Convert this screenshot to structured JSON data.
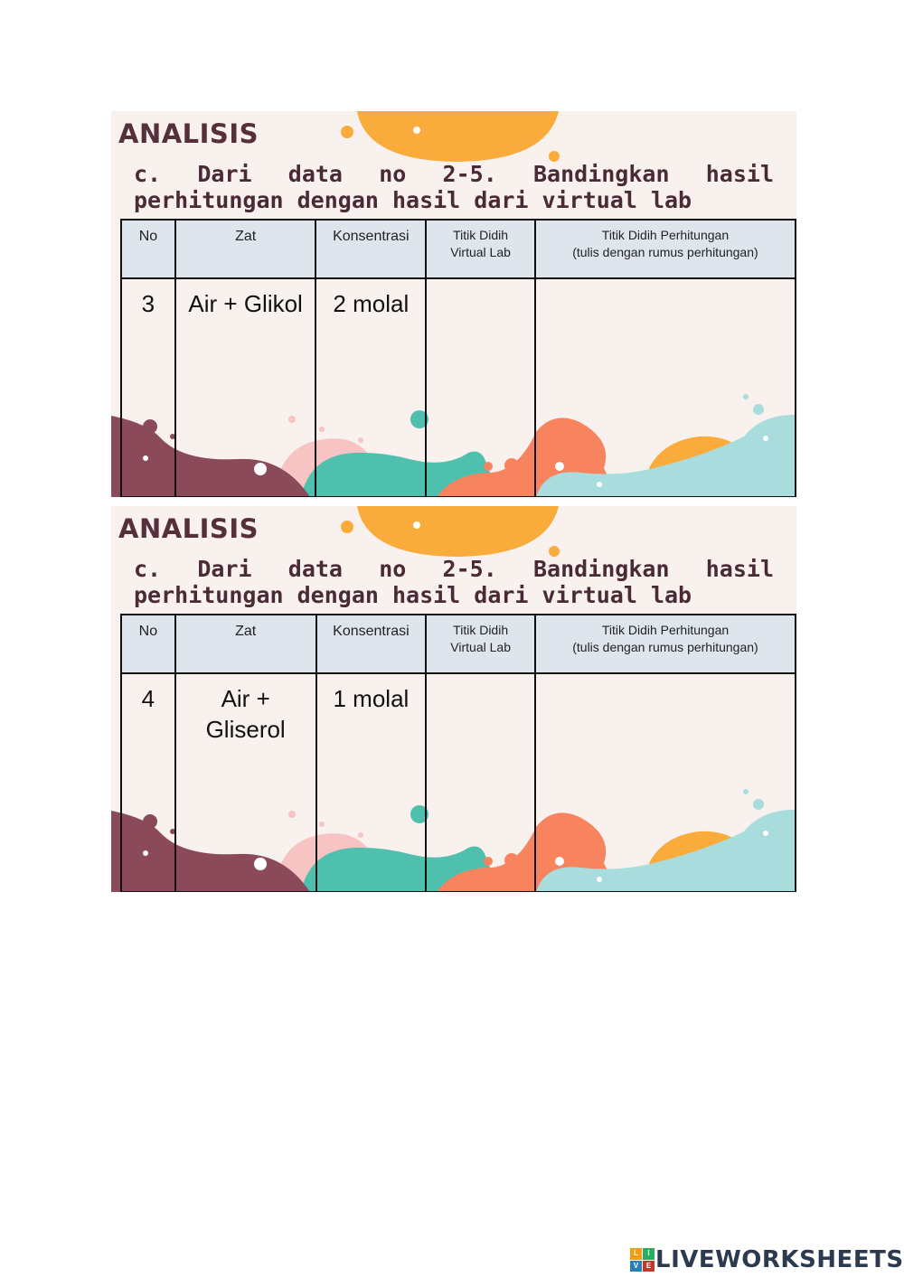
{
  "cards": [
    {
      "heading": "ANALISIS",
      "question": "c. Dari data no 2-5. Bandingkan hasil perhitungan dengan hasil dari virtual lab",
      "headers": [
        "No",
        "Zat",
        "Konsentrasi",
        "Titik Didih\nVirtual Lab",
        "Titik Didih Perhitungan\n(tulis dengan rumus perhitungan)"
      ],
      "row": {
        "no": "3",
        "zat": "Air + Glikol",
        "konsentrasi": "2 molal",
        "virtual_lab": "",
        "perhitungan": ""
      }
    },
    {
      "heading": "ANALISIS",
      "question": "c. Dari data no 2-5. Bandingkan hasil perhitungan dengan hasil dari virtual lab",
      "headers": [
        "No",
        "Zat",
        "Konsentrasi",
        "Titik Didih\nVirtual Lab",
        "Titik Didih Perhitungan\n(tulis dengan rumus perhitungan)"
      ],
      "row": {
        "no": "4",
        "zat": "Air +\nGliserol",
        "konsentrasi": "1 molal",
        "virtual_lab": "",
        "perhitungan": ""
      }
    }
  ],
  "footer": {
    "brand": "LIVEWORKSHEETS",
    "logo_letters": [
      "L",
      "I",
      "V",
      "E"
    ]
  },
  "colors": {
    "plum": "#8a4a5a",
    "teal": "#4fbfae",
    "coral": "#f7845f",
    "orange": "#f9ac3c",
    "pink": "#f8c3c3",
    "aqua": "#a9dcdc",
    "header_bg": "#dfe5ec"
  }
}
